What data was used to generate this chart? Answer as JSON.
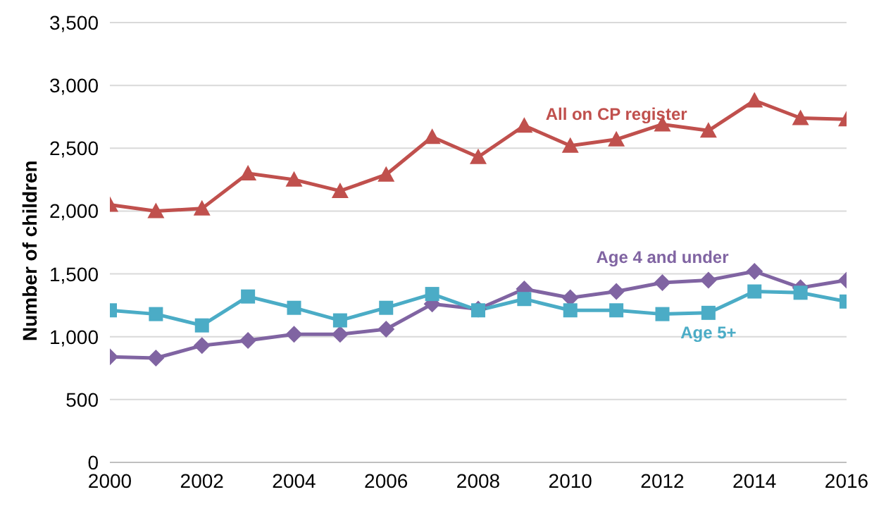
{
  "chart_data": {
    "type": "line",
    "ylabel": "Number of children",
    "x": [
      2000,
      2001,
      2002,
      2003,
      2004,
      2005,
      2006,
      2007,
      2008,
      2009,
      2010,
      2011,
      2012,
      2013,
      2014,
      2015,
      2016
    ],
    "series": [
      {
        "name": "All on CP register",
        "color": "#c0504d",
        "marker": "triangle",
        "values": [
          2050,
          2000,
          2020,
          2300,
          2250,
          2160,
          2290,
          2590,
          2430,
          2680,
          2520,
          2570,
          2690,
          2640,
          2880,
          2740,
          2730
        ]
      },
      {
        "name": "Age 4 and under",
        "color": "#8064a2",
        "marker": "diamond",
        "values": [
          840,
          830,
          930,
          970,
          1020,
          1020,
          1060,
          1260,
          1220,
          1380,
          1310,
          1360,
          1430,
          1450,
          1520,
          1390,
          1450
        ]
      },
      {
        "name": "Age 5+",
        "color": "#4bacc6",
        "marker": "square",
        "values": [
          1210,
          1180,
          1090,
          1320,
          1230,
          1130,
          1230,
          1340,
          1210,
          1300,
          1210,
          1210,
          1180,
          1190,
          1360,
          1350,
          1280
        ]
      }
    ],
    "xlim": [
      2000,
      2016
    ],
    "xticks": [
      2000,
      2002,
      2004,
      2006,
      2008,
      2010,
      2012,
      2014,
      2016
    ],
    "ylim": [
      0,
      3500
    ],
    "yticks": [
      0,
      500,
      {
        "value": 1000,
        "label": "1,000"
      },
      {
        "value": 1500,
        "label": "1,500"
      },
      {
        "value": 2000,
        "label": "2,000"
      },
      {
        "value": 2500,
        "label": "2,500"
      },
      {
        "value": 3000,
        "label": "3,000"
      },
      {
        "value": 3500,
        "label": "3,500"
      }
    ],
    "grid": "y",
    "legend": false,
    "line_style": "solid"
  }
}
